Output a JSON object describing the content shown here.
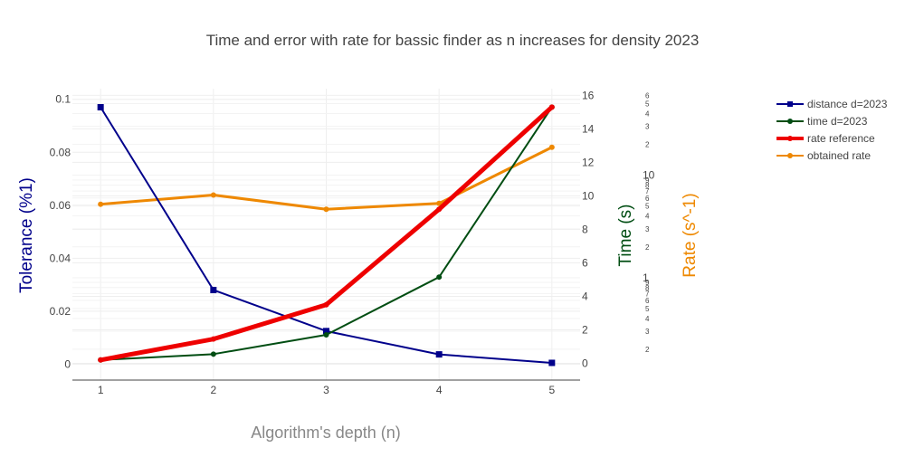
{
  "chart_data": {
    "type": "line",
    "title": "Time and error with rate for bassic finder as n increases for density 2023",
    "xlabel": "Algorithm's depth (n)",
    "ylabel": "Tolerance (%1)",
    "y2label": "Time (s)",
    "y3label": "Rate (s^-1)",
    "x": [
      1,
      2,
      3,
      4,
      5
    ],
    "xlim": [
      0.75,
      5.25
    ],
    "ylim": [
      -0.006,
      0.104
    ],
    "y2lim": [
      -1.0,
      16.4
    ],
    "y3_scale": "log",
    "y3lim": [
      0.1,
      70
    ],
    "x_ticks": [
      "1",
      "2",
      "3",
      "4",
      "5"
    ],
    "y_ticks": [
      {
        "value": 0,
        "label": "0"
      },
      {
        "value": 0.02,
        "label": "0.02"
      },
      {
        "value": 0.04,
        "label": "0.04"
      },
      {
        "value": 0.06,
        "label": "0.06"
      },
      {
        "value": 0.08,
        "label": "0.08"
      },
      {
        "value": 0.1,
        "label": "0.1"
      }
    ],
    "y2_ticks": [
      {
        "value": 0,
        "label": "0"
      },
      {
        "value": 2,
        "label": "2"
      },
      {
        "value": 4,
        "label": "4"
      },
      {
        "value": 6,
        "label": "6"
      },
      {
        "value": 8,
        "label": "8"
      },
      {
        "value": 10,
        "label": "10"
      },
      {
        "value": 12,
        "label": "12"
      },
      {
        "value": 14,
        "label": "14"
      },
      {
        "value": 16,
        "label": "16"
      }
    ],
    "y3_ticks": [
      {
        "value": 0.2,
        "label": "2"
      },
      {
        "value": 0.3,
        "label": "3"
      },
      {
        "value": 0.4,
        "label": "4"
      },
      {
        "value": 0.5,
        "label": "5"
      },
      {
        "value": 0.6,
        "label": "6"
      },
      {
        "value": 0.7,
        "label": "7"
      },
      {
        "value": 0.8,
        "label": "8"
      },
      {
        "value": 0.9,
        "label": "9"
      },
      {
        "value": 1,
        "label": "1"
      },
      {
        "value": 2,
        "label": "2"
      },
      {
        "value": 3,
        "label": "3"
      },
      {
        "value": 4,
        "label": "4"
      },
      {
        "value": 5,
        "label": "5"
      },
      {
        "value": 6,
        "label": "6"
      },
      {
        "value": 7,
        "label": "7"
      },
      {
        "value": 8,
        "label": "8"
      },
      {
        "value": 9,
        "label": "9"
      },
      {
        "value": 10,
        "label": "10"
      },
      {
        "value": 20,
        "label": "2"
      },
      {
        "value": 30,
        "label": "3"
      },
      {
        "value": 40,
        "label": "4"
      },
      {
        "value": 50,
        "label": "5"
      },
      {
        "value": 60,
        "label": "6"
      }
    ],
    "grid": true,
    "legend_position": "top-right",
    "colors": {
      "distance": "#00008b",
      "time": "#004d12",
      "rate_reference": "#ee0000",
      "obtained_rate": "#ee8800",
      "title": "#444444",
      "xlabel": "#888888",
      "ylabel": "#00008b",
      "y2label": "#004d12",
      "y3label": "#ee8800"
    },
    "series": [
      {
        "key": "distance",
        "name": "distance d=2023",
        "axis": "y",
        "marker": "square",
        "values": [
          0.097,
          0.028,
          0.0125,
          0.0037,
          0.0005
        ]
      },
      {
        "key": "time",
        "name": "time d=2023",
        "axis": "y2",
        "marker": "circle",
        "values": [
          0.2,
          0.55,
          1.7,
          5.15,
          15.3
        ]
      },
      {
        "key": "rate_reference",
        "name": "rate reference",
        "axis": "y2",
        "marker": "circle",
        "values": [
          0.2,
          1.45,
          3.5,
          9.2,
          15.3
        ]
      },
      {
        "key": "obtained_rate",
        "name": "obtained rate",
        "axis": "y2",
        "marker": "circle",
        "values": [
          9.5,
          10.05,
          9.2,
          9.55,
          12.9
        ]
      }
    ]
  }
}
